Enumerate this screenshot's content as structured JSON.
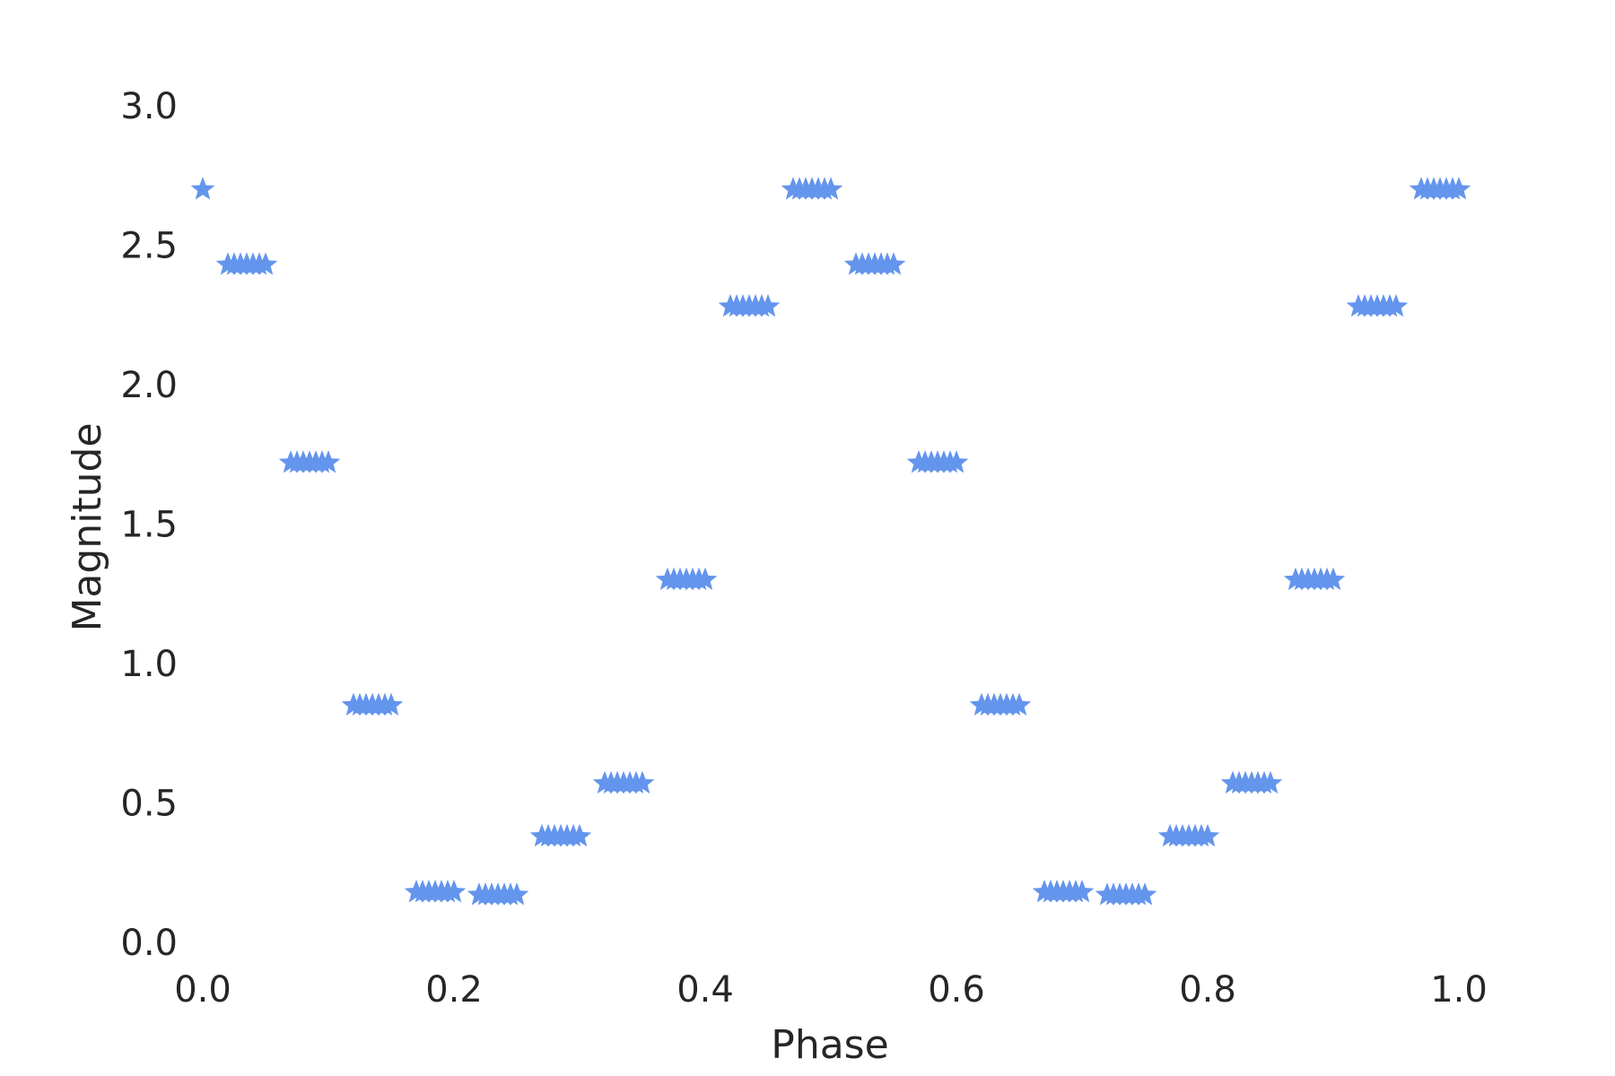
{
  "chart_data": {
    "type": "scatter",
    "title": "",
    "xlabel": "Phase",
    "ylabel": "Magnitude",
    "xlim": [
      0.0,
      1.12
    ],
    "ylim": [
      -0.05,
      3.3
    ],
    "xticks": [
      0.0,
      0.2,
      0.4,
      0.6,
      0.8,
      1.0
    ],
    "xtick_labels": [
      "0.0",
      "0.2",
      "0.4",
      "0.6",
      "0.8",
      "1.0"
    ],
    "yticks": [
      0.0,
      0.5,
      1.0,
      1.5,
      2.0,
      2.5,
      3.0
    ],
    "ytick_labels": [
      "0.0",
      "0.5",
      "1.0",
      "1.5",
      "2.0",
      "2.5",
      "3.0"
    ],
    "grid": false,
    "marker": "star",
    "color": "#6495ED",
    "series": [
      {
        "x": [
          0.0,
          0.02,
          0.025,
          0.03,
          0.035,
          0.04,
          0.045,
          0.05,
          0.07,
          0.075,
          0.08,
          0.085,
          0.09,
          0.095,
          0.1,
          0.12,
          0.125,
          0.13,
          0.135,
          0.14,
          0.145,
          0.15,
          0.17,
          0.175,
          0.18,
          0.185,
          0.19,
          0.195,
          0.2,
          0.22,
          0.225,
          0.23,
          0.235,
          0.24,
          0.245,
          0.25,
          0.27,
          0.275,
          0.28,
          0.285,
          0.29,
          0.295,
          0.3,
          0.32,
          0.325,
          0.33,
          0.335,
          0.34,
          0.345,
          0.35,
          0.37,
          0.375,
          0.38,
          0.385,
          0.39,
          0.395,
          0.4,
          0.42,
          0.425,
          0.43,
          0.435,
          0.44,
          0.445,
          0.45,
          0.47,
          0.475,
          0.48,
          0.485,
          0.49,
          0.495,
          0.5,
          0.52,
          0.525,
          0.53,
          0.535,
          0.54,
          0.545,
          0.55,
          0.57,
          0.575,
          0.58,
          0.585,
          0.59,
          0.595,
          0.6,
          0.62,
          0.625,
          0.63,
          0.635,
          0.64,
          0.645,
          0.65,
          0.67,
          0.675,
          0.68,
          0.685,
          0.69,
          0.695,
          0.7,
          0.72,
          0.725,
          0.73,
          0.735,
          0.74,
          0.745,
          0.75,
          0.77,
          0.775,
          0.78,
          0.785,
          0.79,
          0.795,
          0.8,
          0.82,
          0.825,
          0.83,
          0.835,
          0.84,
          0.845,
          0.85,
          0.87,
          0.875,
          0.88,
          0.885,
          0.89,
          0.895,
          0.9,
          0.92,
          0.925,
          0.93,
          0.935,
          0.94,
          0.945,
          0.95,
          0.97,
          0.975,
          0.98,
          0.985,
          0.99,
          0.995,
          1.0
        ],
        "y": [
          2.7,
          2.43,
          2.43,
          2.43,
          2.43,
          2.43,
          2.43,
          2.43,
          1.72,
          1.72,
          1.72,
          1.72,
          1.72,
          1.72,
          1.72,
          0.85,
          0.85,
          0.85,
          0.85,
          0.85,
          0.85,
          0.85,
          0.18,
          0.18,
          0.18,
          0.18,
          0.18,
          0.18,
          0.18,
          0.17,
          0.17,
          0.17,
          0.17,
          0.17,
          0.17,
          0.17,
          0.38,
          0.38,
          0.38,
          0.38,
          0.38,
          0.38,
          0.38,
          0.57,
          0.57,
          0.57,
          0.57,
          0.57,
          0.57,
          0.57,
          1.3,
          1.3,
          1.3,
          1.3,
          1.3,
          1.3,
          1.3,
          2.28,
          2.28,
          2.28,
          2.28,
          2.28,
          2.28,
          2.28,
          2.7,
          2.7,
          2.7,
          2.7,
          2.7,
          2.7,
          2.7,
          2.43,
          2.43,
          2.43,
          2.43,
          2.43,
          2.43,
          2.43,
          1.72,
          1.72,
          1.72,
          1.72,
          1.72,
          1.72,
          1.72,
          0.85,
          0.85,
          0.85,
          0.85,
          0.85,
          0.85,
          0.85,
          0.18,
          0.18,
          0.18,
          0.18,
          0.18,
          0.18,
          0.18,
          0.17,
          0.17,
          0.17,
          0.17,
          0.17,
          0.17,
          0.17,
          0.38,
          0.38,
          0.38,
          0.38,
          0.38,
          0.38,
          0.38,
          0.57,
          0.57,
          0.57,
          0.57,
          0.57,
          0.57,
          0.57,
          1.3,
          1.3,
          1.3,
          1.3,
          1.3,
          1.3,
          1.3,
          2.28,
          2.28,
          2.28,
          2.28,
          2.28,
          2.28,
          2.28,
          2.7,
          2.7,
          2.7,
          2.7,
          2.7,
          2.7,
          2.7
        ]
      }
    ]
  }
}
